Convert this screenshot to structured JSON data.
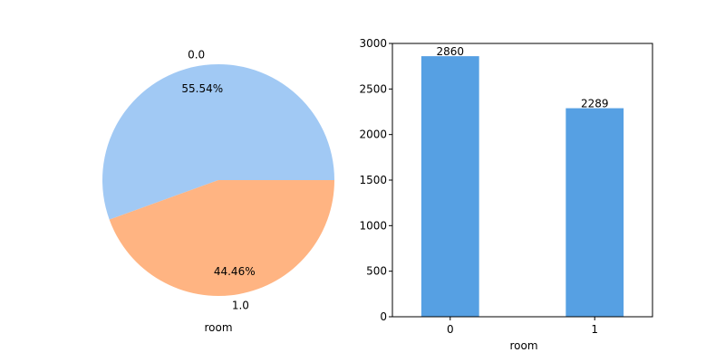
{
  "chart_data": [
    {
      "type": "pie",
      "labels": [
        "0.0",
        "1.0"
      ],
      "values": [
        55.54,
        44.46
      ],
      "percent_labels": [
        "55.54%",
        "44.46%"
      ],
      "colors": [
        "#a1c9f4",
        "#ffb482"
      ],
      "xlabel": "room"
    },
    {
      "type": "bar",
      "categories": [
        "0",
        "1"
      ],
      "values": [
        2860,
        2289
      ],
      "value_labels": [
        "2860",
        "2289"
      ],
      "color": "#56a0e3",
      "xlabel": "room",
      "ylabel": "",
      "ylim": [
        0,
        3000
      ],
      "yticks": [
        0,
        500,
        1000,
        1500,
        2000,
        2500,
        3000
      ],
      "ytick_labels": [
        "0",
        "500",
        "1000",
        "1500",
        "2000",
        "2500",
        "3000"
      ],
      "grid": false
    }
  ]
}
